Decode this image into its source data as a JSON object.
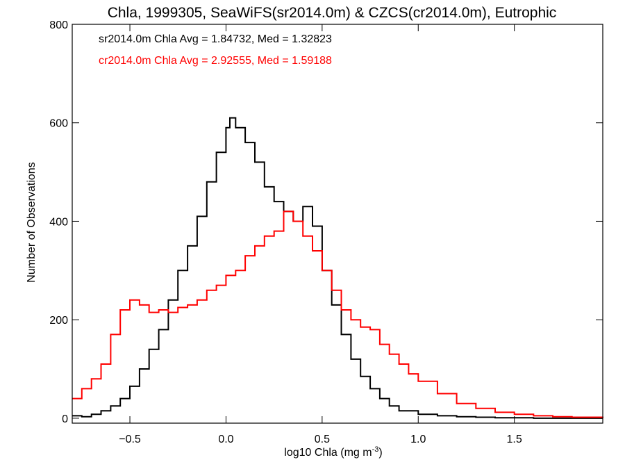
{
  "chart_data": {
    "type": "histogram",
    "title": "Chla, 1999305, SeaWiFS(sr2014.0m) & CZCS(cr2014.0m), Eutrophic",
    "xlabel_main": "log10 Chla (mg m",
    "xlabel_sup": "-3",
    "xlabel_close": ")",
    "ylabel": "Number of Observations",
    "xlim": [
      -0.8,
      1.96
    ],
    "ylim": [
      -10,
      800
    ],
    "xticks": [
      -0.5,
      0.0,
      0.5,
      1.0,
      1.5
    ],
    "xtick_labels": [
      "−0.5",
      "0.0",
      "0.5",
      "1.0",
      "1.5"
    ],
    "yticks": [
      0,
      200,
      400,
      600,
      800
    ],
    "ytick_labels": [
      "0",
      "200",
      "400",
      "600",
      "800"
    ],
    "annotations": [
      {
        "text": "sr2014.0m Chla Avg = 1.84732, Med = 1.32823",
        "color": "#000000"
      },
      {
        "text": "cr2014.0m Chla Avg = 2.92555, Med = 1.59188",
        "color": "#ff0000"
      }
    ],
    "series": [
      {
        "color": "#000000",
        "x": [
          -0.8,
          -0.75,
          -0.7,
          -0.65,
          -0.6,
          -0.55,
          -0.5,
          -0.45,
          -0.4,
          -0.35,
          -0.3,
          -0.25,
          -0.2,
          -0.15,
          -0.1,
          -0.05,
          0.0,
          0.02,
          0.05,
          0.1,
          0.15,
          0.2,
          0.25,
          0.3,
          0.35,
          0.4,
          0.45,
          0.5,
          0.55,
          0.6,
          0.65,
          0.7,
          0.75,
          0.8,
          0.85,
          0.9,
          1.0,
          1.1,
          1.2,
          1.3,
          1.4,
          1.5,
          1.6,
          1.7,
          1.8,
          1.96
        ],
        "y": [
          5,
          3,
          8,
          15,
          25,
          40,
          65,
          100,
          140,
          180,
          240,
          300,
          350,
          410,
          480,
          540,
          590,
          610,
          590,
          560,
          520,
          470,
          440,
          420,
          400,
          430,
          390,
          300,
          230,
          170,
          120,
          85,
          60,
          40,
          25,
          15,
          8,
          5,
          3,
          2,
          1,
          1,
          0,
          0,
          0,
          0
        ]
      },
      {
        "color": "#ff0000",
        "x": [
          -0.8,
          -0.75,
          -0.7,
          -0.65,
          -0.6,
          -0.55,
          -0.5,
          -0.45,
          -0.4,
          -0.35,
          -0.3,
          -0.25,
          -0.2,
          -0.15,
          -0.1,
          -0.05,
          0.0,
          0.05,
          0.1,
          0.15,
          0.2,
          0.25,
          0.3,
          0.35,
          0.4,
          0.45,
          0.5,
          0.55,
          0.6,
          0.65,
          0.7,
          0.75,
          0.8,
          0.85,
          0.9,
          0.95,
          1.0,
          1.1,
          1.2,
          1.3,
          1.4,
          1.5,
          1.6,
          1.7,
          1.8,
          1.96
        ],
        "y": [
          40,
          60,
          80,
          110,
          170,
          220,
          240,
          230,
          215,
          220,
          215,
          225,
          230,
          240,
          260,
          270,
          290,
          300,
          330,
          350,
          370,
          380,
          420,
          400,
          370,
          340,
          300,
          260,
          220,
          200,
          185,
          180,
          150,
          130,
          110,
          90,
          75,
          50,
          30,
          20,
          12,
          8,
          5,
          3,
          2,
          0
        ]
      }
    ]
  }
}
